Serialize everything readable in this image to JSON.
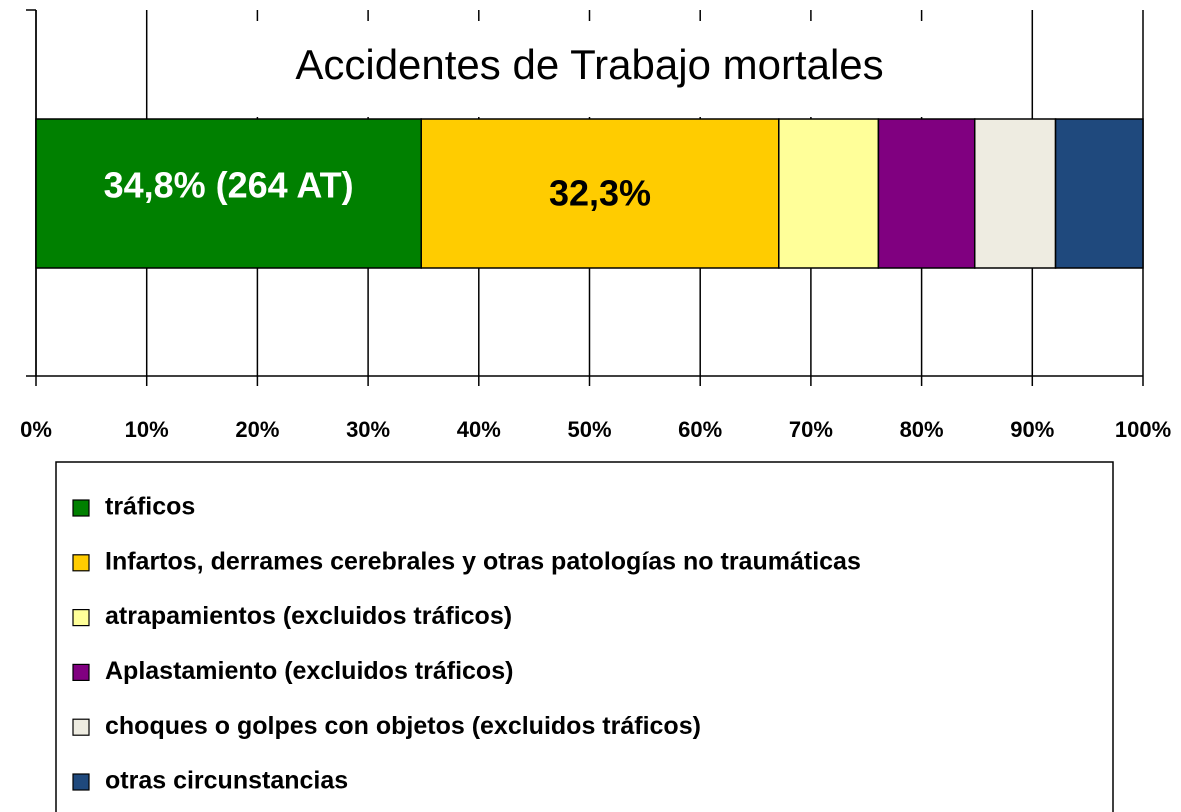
{
  "chart_data": {
    "type": "stacked_barh",
    "title": "Accidentes de Trabajo mortales",
    "series": [
      {
        "name": "tráficos",
        "color": "#008000",
        "values": [
          34.8
        ],
        "value_labels": [
          "34,8% (264 AT)"
        ]
      },
      {
        "name": "Infartos, derrames cerebrales y otras patologías no traumáticas",
        "color": "#ffcc00",
        "values": [
          32.3
        ],
        "value_labels": [
          "32,3%"
        ]
      },
      {
        "name": "atrapamientos (excluidos tráficos)",
        "color": "#ffff99",
        "values": [
          9.0
        ]
      },
      {
        "name": "Aplastamiento (excluidos tráficos)",
        "color": "#800080",
        "values": [
          8.7
        ]
      },
      {
        "name": "choques o golpes con objetos (excluidos tráficos)",
        "color": "#eeece1",
        "values": [
          7.3
        ]
      },
      {
        "name": "otras circunstancias",
        "color": "#1f497d",
        "values": [
          7.9
        ]
      }
    ],
    "xlim": [
      0,
      100
    ],
    "xticks": [
      {
        "value": 0,
        "label": "0%"
      },
      {
        "value": 10,
        "label": "10%"
      },
      {
        "value": 20,
        "label": "20%"
      },
      {
        "value": 30,
        "label": "30%"
      },
      {
        "value": 40,
        "label": "40%"
      },
      {
        "value": 50,
        "label": "50%"
      },
      {
        "value": 60,
        "label": "60%"
      },
      {
        "value": 70,
        "label": "70%"
      },
      {
        "value": 80,
        "label": "80%"
      },
      {
        "value": 90,
        "label": "90%"
      },
      {
        "value": 100,
        "label": "100%"
      }
    ],
    "grid": true
  }
}
